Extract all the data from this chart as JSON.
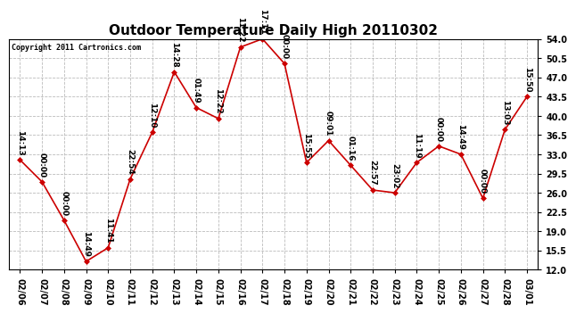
{
  "title": "Outdoor Temperature Daily High 20110302",
  "copyright": "Copyright 2011 Cartronics.com",
  "x_labels": [
    "02/06",
    "02/07",
    "02/08",
    "02/09",
    "02/10",
    "02/11",
    "02/12",
    "02/13",
    "02/14",
    "02/15",
    "02/16",
    "02/17",
    "02/18",
    "02/19",
    "02/20",
    "02/21",
    "02/22",
    "02/23",
    "02/24",
    "02/25",
    "02/26",
    "02/27",
    "02/28",
    "03/01"
  ],
  "y_values": [
    32.0,
    28.0,
    21.0,
    13.5,
    16.0,
    28.5,
    37.0,
    48.0,
    41.5,
    39.5,
    52.5,
    54.0,
    49.5,
    31.5,
    35.5,
    31.0,
    26.5,
    26.0,
    31.5,
    34.5,
    33.0,
    25.0,
    37.5,
    43.5
  ],
  "point_labels": [
    "14:13",
    "00:00",
    "00:00",
    "14:49",
    "11:41",
    "22:54",
    "12:10",
    "14:28",
    "01:49",
    "12:22",
    "11:22",
    "17:11",
    "00:00",
    "15:55",
    "09:01",
    "01:16",
    "22:57",
    "23:02",
    "11:19",
    "00:00",
    "14:49",
    "00:00",
    "13:03",
    "15:50"
  ],
  "line_color": "#cc0000",
  "marker_color": "#cc0000",
  "grid_color": "#bbbbbb",
  "bg_color": "#ffffff",
  "ylim_min": 12.0,
  "ylim_max": 54.0,
  "yticks": [
    12.0,
    15.5,
    19.0,
    22.5,
    26.0,
    29.5,
    33.0,
    36.5,
    40.0,
    43.5,
    47.0,
    50.5,
    54.0
  ],
  "title_fontsize": 11,
  "tick_fontsize": 7,
  "label_fontsize": 6.5
}
